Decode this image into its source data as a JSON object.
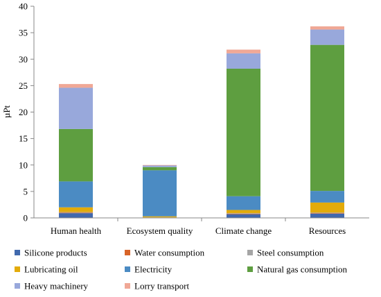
{
  "chart_data": {
    "type": "bar",
    "stacked": true,
    "categories": [
      "Human health",
      "Ecosystem quality",
      "Climate change",
      "Resources"
    ],
    "ylabel": "µPt",
    "ylim": [
      0,
      40
    ],
    "yticks": [
      0,
      5,
      10,
      15,
      20,
      25,
      30,
      35,
      40
    ],
    "grid": false,
    "legend_position": "bottom",
    "series": [
      {
        "name": "Silicone products",
        "color": "#4169AD",
        "values": [
          0.9,
          0.05,
          0.7,
          0.8
        ]
      },
      {
        "name": "Water consumption",
        "color": "#D86428",
        "values": [
          0.1,
          0.02,
          0.1,
          0.1
        ]
      },
      {
        "name": "Steel consumption",
        "color": "#A5A5A5",
        "values": [
          0.1,
          0.03,
          0.1,
          0.1
        ]
      },
      {
        "name": "Lubricating oil",
        "color": "#E3AB0A",
        "values": [
          0.9,
          0.2,
          0.6,
          1.9
        ]
      },
      {
        "name": "Electricity",
        "color": "#4B8BC3",
        "values": [
          4.9,
          8.7,
          2.6,
          2.2
        ]
      },
      {
        "name": "Natural gas consumption",
        "color": "#5E9E40",
        "values": [
          9.9,
          0.6,
          24.1,
          27.6
        ]
      },
      {
        "name": "Heavy machinery",
        "color": "#98A8DB",
        "values": [
          7.8,
          0.3,
          2.9,
          2.9
        ]
      },
      {
        "name": "Lorry transport",
        "color": "#F0A896",
        "values": [
          0.7,
          0.1,
          0.7,
          0.6
        ]
      }
    ]
  }
}
